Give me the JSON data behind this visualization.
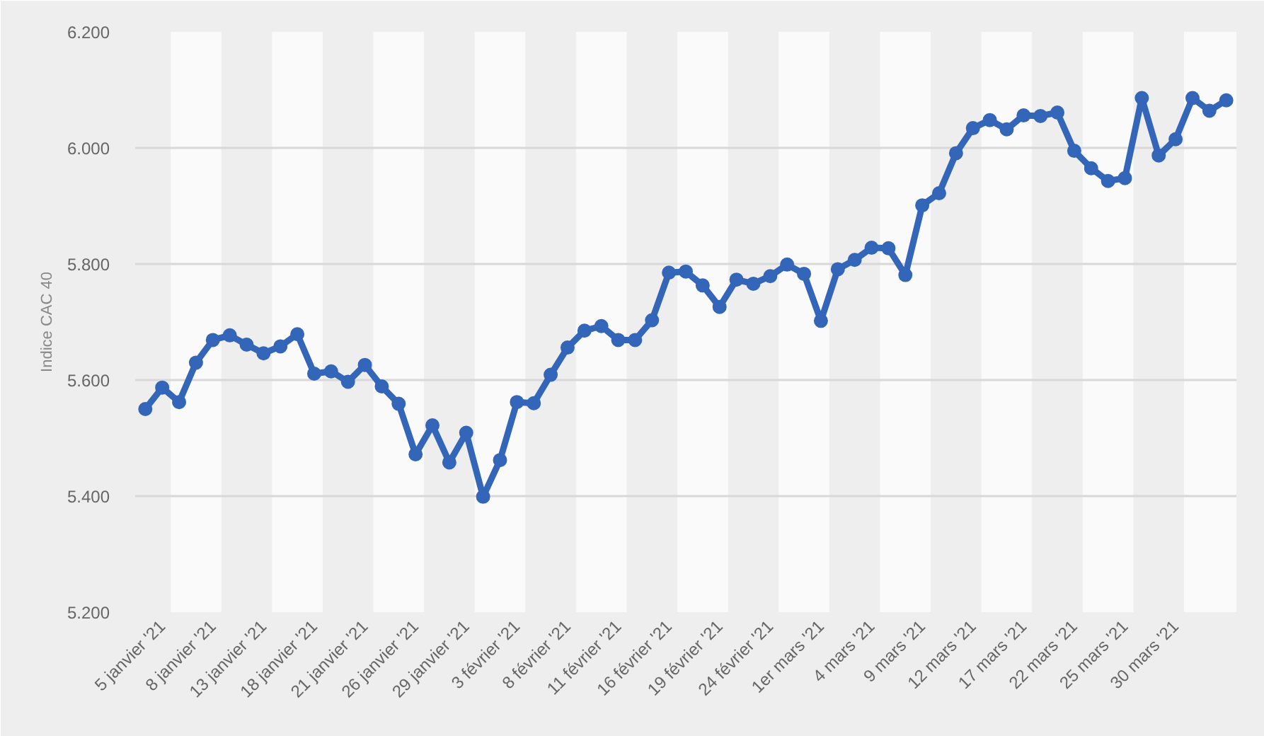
{
  "chart_data": {
    "type": "line",
    "ylabel": "Indice CAC 40",
    "categories": [
      null,
      "5 janvier '21",
      null,
      null,
      "8 janvier '21",
      null,
      null,
      "13 janvier '21",
      null,
      null,
      "18 janvier '21",
      null,
      null,
      "21 janvier '21",
      null,
      null,
      "26 janvier '21",
      null,
      null,
      "29 janvier '21",
      null,
      null,
      "3 février '21",
      null,
      null,
      "8 février '21",
      null,
      null,
      "11 février '21",
      null,
      null,
      "16 février '21",
      null,
      null,
      "19 février '21",
      null,
      null,
      "24 février '21",
      null,
      null,
      "1er mars '21",
      null,
      null,
      "4 mars '21",
      null,
      null,
      "9 mars '21",
      null,
      null,
      "12 mars '21",
      null,
      null,
      "17 mars '21",
      null,
      null,
      "22 mars '21",
      null,
      null,
      "25 mars '21",
      null,
      null,
      "30 mars '21",
      null,
      null,
      null
    ],
    "series": [
      {
        "color": "#3366b8",
        "values": [
          5550,
          5587,
          5562,
          5630,
          5669,
          5677,
          5661,
          5646,
          5658,
          5679,
          5611,
          5615,
          5597,
          5626,
          5589,
          5559,
          5472,
          5522,
          5458,
          5509,
          5399,
          5462,
          5562,
          5560,
          5609,
          5656,
          5685,
          5693,
          5669,
          5669,
          5703,
          5785,
          5787,
          5763,
          5726,
          5773,
          5766,
          5779,
          5799,
          5783,
          5702,
          5791,
          5807,
          5828,
          5827,
          5781,
          5901,
          5922,
          5991,
          6034,
          6048,
          6032,
          6056,
          6055,
          6061,
          5995,
          5965,
          5943,
          5948,
          6086,
          5987,
          6015,
          6086,
          6064,
          6082
        ]
      }
    ],
    "ylim": [
      5200,
      6200
    ],
    "yticks": [
      {
        "value": 5200,
        "label": "5.200"
      },
      {
        "value": 5400,
        "label": "5.400"
      },
      {
        "value": 5600,
        "label": "5.600"
      },
      {
        "value": 5800,
        "label": "5.800"
      },
      {
        "value": 6000,
        "label": "6.000"
      },
      {
        "value": 6200,
        "label": "6.200"
      }
    ],
    "grid": true,
    "marker": "circle",
    "line_style": "solid"
  }
}
